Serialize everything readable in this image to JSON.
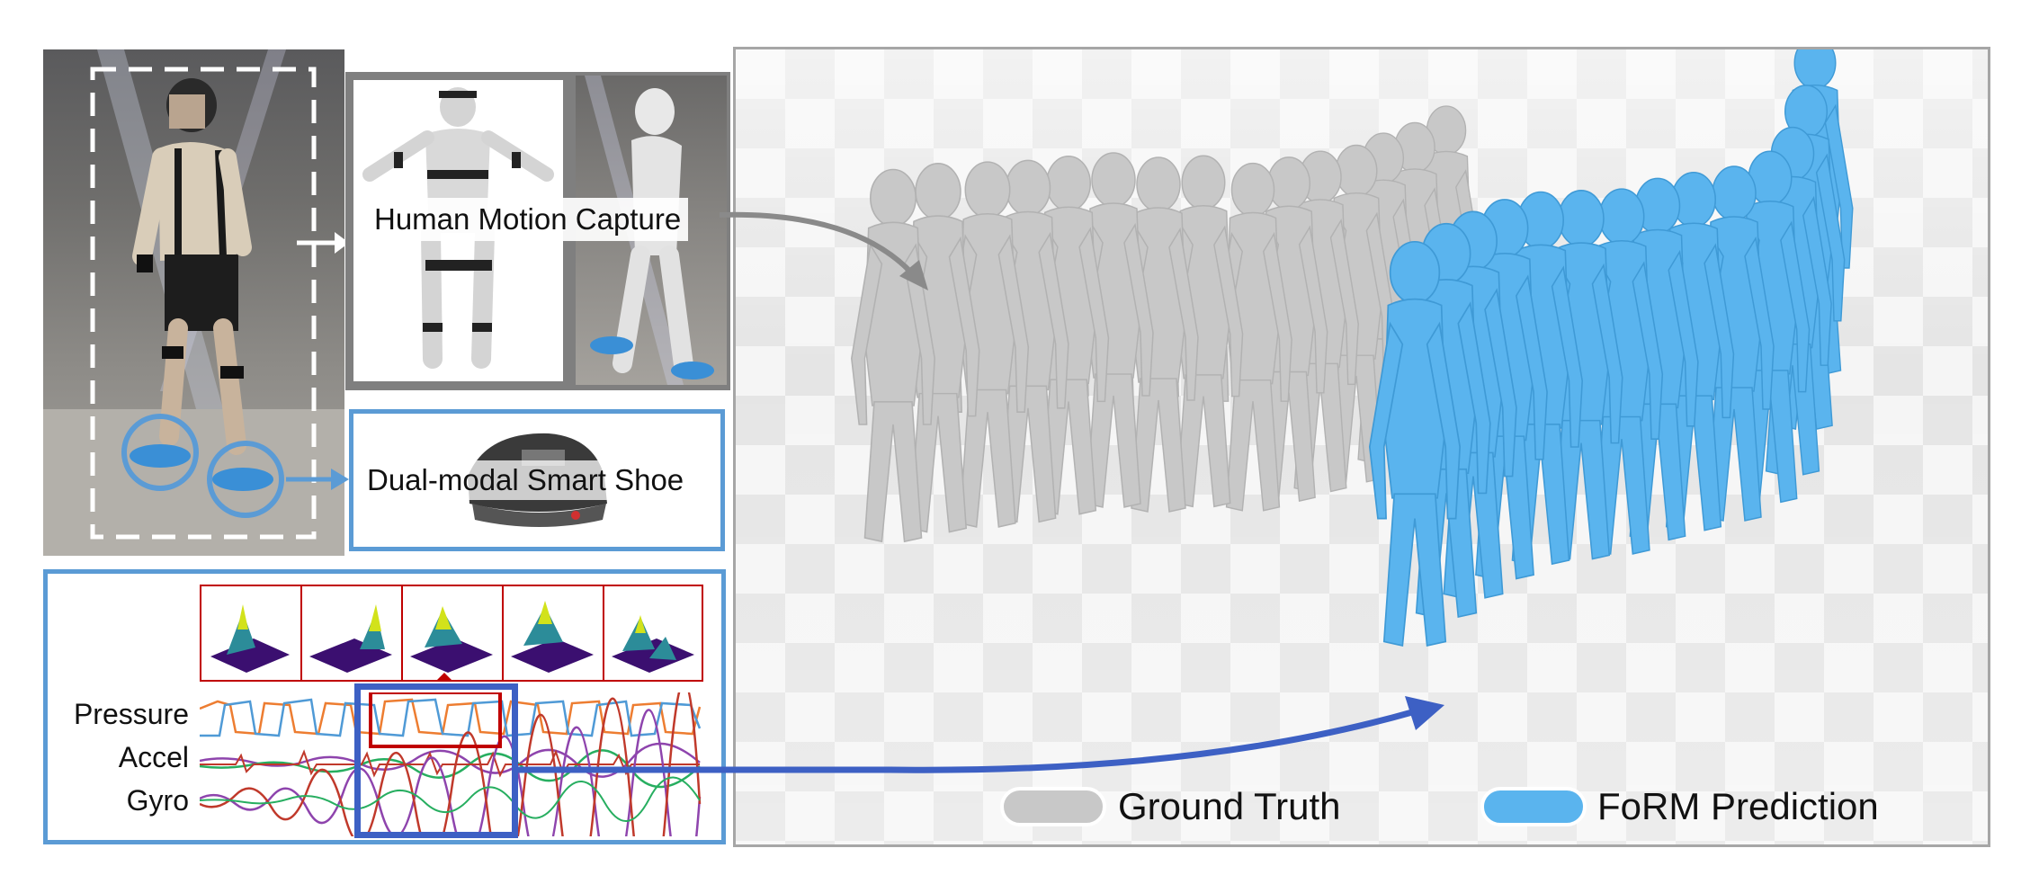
{
  "labels": {
    "mocap": "Human Motion Capture",
    "shoe": "Dual-modal Smart Shoe",
    "pressure": "Pressure",
    "accel": "Accel",
    "gyro": "Gyro"
  },
  "legend": {
    "ground_truth": "Ground Truth",
    "prediction": "FoRM Prediction"
  },
  "colors": {
    "ground_truth": "#c8c8c8",
    "prediction": "#5ab4ee",
    "panel_border": "#5b9bd5",
    "highlight_box": "#3d60c4",
    "heatmap_border": "#c00000"
  }
}
